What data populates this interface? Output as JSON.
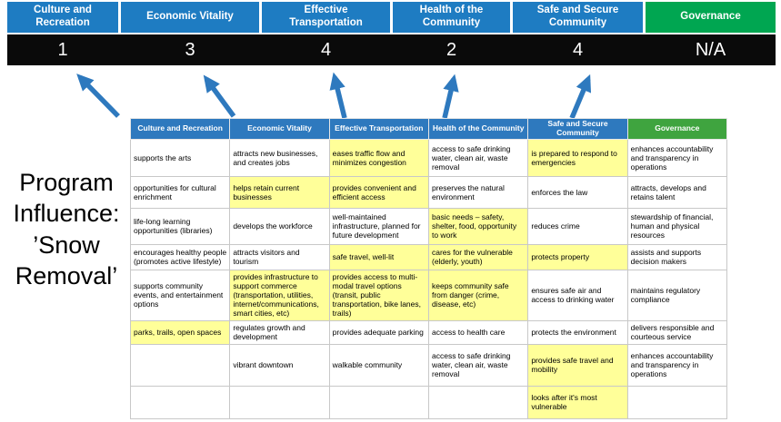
{
  "title": "Program Influence: ’Snow Removal’",
  "colors": {
    "banner_blue": "#1E7CC2",
    "banner_green": "#00A651",
    "table_header_blue": "#2E79BE",
    "table_header_green": "#3FA43F",
    "highlight_yellow": "#FFFF99",
    "score_bar_black": "#0A0A0A",
    "arrow_blue": "#2E79BE"
  },
  "top_banner": {
    "columns": [
      {
        "label": "Culture and Recreation",
        "score": "1",
        "color": "blue"
      },
      {
        "label": "Economic Vitality",
        "score": "3",
        "color": "blue"
      },
      {
        "label": "Effective Transportation",
        "score": "4",
        "color": "blue"
      },
      {
        "label": "Health of the Community",
        "score": "2",
        "color": "blue"
      },
      {
        "label": "Safe and Secure Community",
        "score": "4",
        "color": "blue"
      },
      {
        "label": "Governance",
        "score": "N/A",
        "color": "green"
      }
    ]
  },
  "matrix": {
    "headers": [
      {
        "label": "Culture and Recreation",
        "color": "blue"
      },
      {
        "label": "Economic Vitality",
        "color": "blue"
      },
      {
        "label": "Effective Transportation",
        "color": "blue"
      },
      {
        "label": "Health of the Community",
        "color": "blue"
      },
      {
        "label": "Safe and Secure Community",
        "color": "blue"
      },
      {
        "label": "Governance",
        "color": "green"
      }
    ],
    "rows": [
      [
        {
          "text": "supports the arts",
          "highlight": false
        },
        {
          "text": "attracts new businesses, and creates jobs",
          "highlight": false
        },
        {
          "text": "eases traffic flow and minimizes congestion",
          "highlight": true
        },
        {
          "text": "access to safe drinking water, clean air, waste removal",
          "highlight": false
        },
        {
          "text": "is prepared to respond to emergencies",
          "highlight": true
        },
        {
          "text": "enhances accountability and transparency in operations",
          "highlight": false
        }
      ],
      [
        {
          "text": "opportunities for cultural enrichment",
          "highlight": false
        },
        {
          "text": "helps retain current businesses",
          "highlight": true
        },
        {
          "text": "provides convenient and efficient access",
          "highlight": true
        },
        {
          "text": "preserves the natural environment",
          "highlight": false
        },
        {
          "text": "enforces the law",
          "highlight": false
        },
        {
          "text": "attracts, develops and retains talent",
          "highlight": false
        }
      ],
      [
        {
          "text": "life-long learning opportunities (libraries)",
          "highlight": false
        },
        {
          "text": "develops the workforce",
          "highlight": false
        },
        {
          "text": "well-maintained infrastructure, planned for future development",
          "highlight": false
        },
        {
          "text": "basic needs – safety, shelter, food, opportunity to work",
          "highlight": true
        },
        {
          "text": "reduces crime",
          "highlight": false
        },
        {
          "text": "stewardship of financial, human and physical resources",
          "highlight": false
        }
      ],
      [
        {
          "text": "encourages healthy people (promotes active lifestyle)",
          "highlight": false
        },
        {
          "text": "attracts visitors and tourism",
          "highlight": false
        },
        {
          "text": "safe travel, well-lit",
          "highlight": true
        },
        {
          "text": "cares for the vulnerable (elderly, youth)",
          "highlight": true
        },
        {
          "text": "protects property",
          "highlight": true
        },
        {
          "text": "assists and supports decision makers",
          "highlight": false
        }
      ],
      [
        {
          "text": "supports community events, and entertainment options",
          "highlight": false
        },
        {
          "text": "provides infrastructure to support commerce (transportation, utilities, internet/communications, smart cities, etc)",
          "highlight": true
        },
        {
          "text": "provides access to multi-modal travel options (transit, public transportation, bike lanes, trails)",
          "highlight": true
        },
        {
          "text": "keeps community safe from danger (crime, disease, etc)",
          "highlight": true
        },
        {
          "text": "ensures safe air and access to drinking water",
          "highlight": false
        },
        {
          "text": "maintains regulatory compliance",
          "highlight": false
        }
      ],
      [
        {
          "text": "parks, trails, open spaces",
          "highlight": true
        },
        {
          "text": "regulates growth and development",
          "highlight": false
        },
        {
          "text": "provides adequate parking",
          "highlight": false
        },
        {
          "text": "access to health care",
          "highlight": false
        },
        {
          "text": "protects the environment",
          "highlight": false
        },
        {
          "text": "delivers responsible and courteous service",
          "highlight": false
        }
      ],
      [
        {
          "text": "",
          "highlight": false
        },
        {
          "text": "vibrant downtown",
          "highlight": false
        },
        {
          "text": "walkable community",
          "highlight": false
        },
        {
          "text": "access to safe drinking water, clean air, waste removal",
          "highlight": false
        },
        {
          "text": "provides safe travel and mobility",
          "highlight": true
        },
        {
          "text": "enhances accountability and transparency in operations",
          "highlight": false
        }
      ],
      [
        {
          "text": "",
          "highlight": false
        },
        {
          "text": "",
          "highlight": false
        },
        {
          "text": "",
          "highlight": false
        },
        {
          "text": "",
          "highlight": false
        },
        {
          "text": "looks after it's most vulnerable",
          "highlight": true
        },
        {
          "text": "",
          "highlight": false
        }
      ]
    ]
  }
}
